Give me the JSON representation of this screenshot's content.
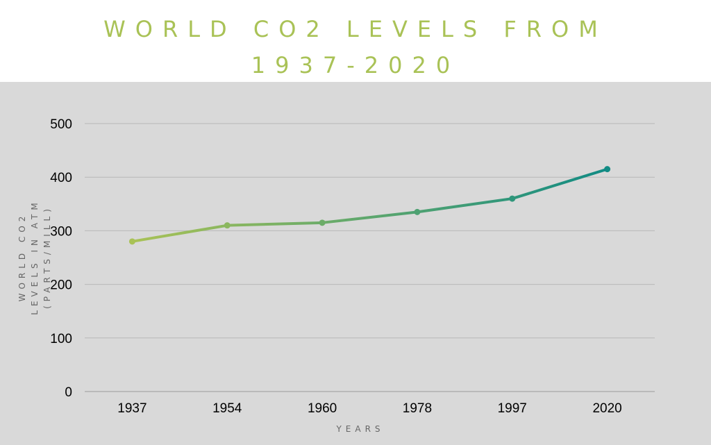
{
  "title_line1": "WORLD CO2 LEVELS FROM",
  "title_line2": "1937-2020",
  "chart_data": {
    "type": "line",
    "title": "WORLD CO2 LEVELS FROM 1937-2020",
    "categories": [
      "1937",
      "1954",
      "1960",
      "1978",
      "1997",
      "2020"
    ],
    "values": [
      280,
      310,
      315,
      335,
      360,
      415
    ],
    "xlabel": "YEARS",
    "ylabel_line1": "WORLD CO2",
    "ylabel_line2": "LEVELS IN ATM",
    "ylabel_line3": "(PARTS/MILL)",
    "ylim": [
      0,
      500
    ],
    "yticks": [
      "0",
      "100",
      "200",
      "300",
      "400",
      "500"
    ],
    "grid": true,
    "legend": "none",
    "colors": {
      "start": "#a9c256",
      "end": "#118b84",
      "background": "#d9d9d9",
      "grid": "#b8b8b8",
      "title": "#a9c256"
    }
  }
}
